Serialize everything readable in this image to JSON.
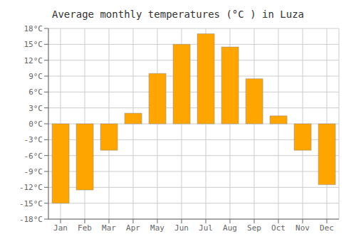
{
  "chart_data": {
    "type": "bar",
    "title": "Average monthly temperatures (°C ) in Luza",
    "categories": [
      "Jan",
      "Feb",
      "Mar",
      "Apr",
      "May",
      "Jun",
      "Jul",
      "Aug",
      "Sep",
      "Oct",
      "Nov",
      "Dec"
    ],
    "values": [
      -15,
      -12.5,
      -5,
      2,
      9.5,
      15,
      17,
      14.5,
      8.5,
      1.5,
      -5,
      -11.5
    ],
    "color": "#FFA500",
    "ylim": [
      -18,
      18
    ],
    "yticks": [
      {
        "value": -18,
        "label": "-18°C"
      },
      {
        "value": -15,
        "label": "-15°C"
      },
      {
        "value": -12,
        "label": "-12°C"
      },
      {
        "value": -9,
        "label": "-9°C"
      },
      {
        "value": -6,
        "label": "-6°C"
      },
      {
        "value": -3,
        "label": "-3°C"
      },
      {
        "value": 0,
        "label": "0°C"
      },
      {
        "value": 3,
        "label": "3°C"
      },
      {
        "value": 6,
        "label": "6°C"
      },
      {
        "value": 9,
        "label": "9°C"
      },
      {
        "value": 12,
        "label": "12°C"
      },
      {
        "value": 15,
        "label": "15°C"
      },
      {
        "value": 18,
        "label": "18°C"
      }
    ],
    "grid": true
  }
}
